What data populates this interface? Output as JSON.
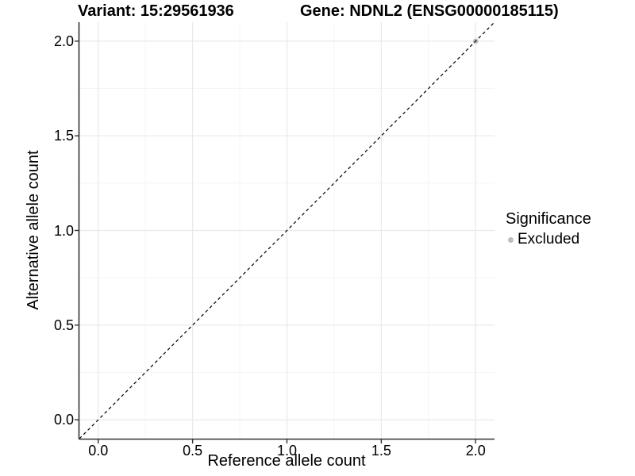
{
  "titles": {
    "variant": "Variant: 15:29561936",
    "gene": "Gene: NDNL2 (ENSG00000185115)"
  },
  "axes": {
    "x_label": "Reference allele count",
    "y_label": "Alternative allele count"
  },
  "legend": {
    "title": "Significance",
    "items": [
      {
        "label": "Excluded",
        "color": "#bdbdbd"
      }
    ]
  },
  "chart_data": {
    "type": "scatter",
    "title": "Variant: 15:29561936 | Gene: NDNL2 (ENSG00000185115)",
    "xlabel": "Reference allele count",
    "ylabel": "Alternative allele count",
    "xlim": [
      -0.1,
      2.1
    ],
    "ylim": [
      -0.1,
      2.1
    ],
    "x_ticks": {
      "values": [
        0,
        0.5,
        1,
        1.5,
        2
      ],
      "labels": [
        "0.0",
        "0.5",
        "1.0",
        "1.5",
        "2.0"
      ]
    },
    "y_ticks": {
      "values": [
        0,
        0.5,
        1,
        1.5,
        2
      ],
      "labels": [
        "0.0",
        "0.5",
        "1.0",
        "1.5",
        "2.0"
      ]
    },
    "x_minor": [
      0.25,
      0.75,
      1.25,
      1.75
    ],
    "y_minor": [
      0.25,
      0.75,
      1.25,
      1.75
    ],
    "grid": {
      "major_color": "#e9e9e9",
      "minor_color": "#f4f4f4"
    },
    "axis_line_color": "#333333",
    "legend_position": "right",
    "series": [
      {
        "name": "Excluded",
        "color": "#bdbdbd",
        "points": [
          {
            "x": 2.0,
            "y": 2.0
          }
        ]
      }
    ],
    "reference_line": {
      "type": "identity",
      "style": "dashed",
      "color": "#000000",
      "from": [
        -0.1,
        -0.1
      ],
      "to": [
        2.1,
        2.1
      ]
    }
  }
}
